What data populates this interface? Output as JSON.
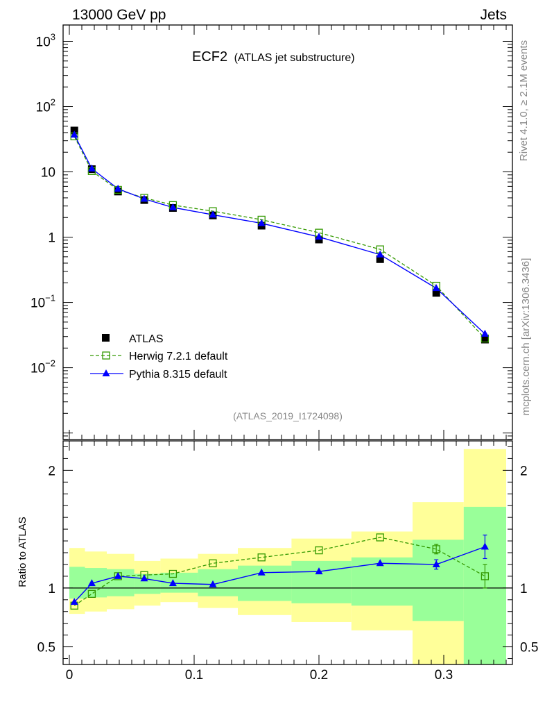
{
  "header": {
    "left": "13000 GeV pp",
    "right": "Jets"
  },
  "side_texts": {
    "events": "Rivet 4.1.0, ≥ 2.1M events",
    "site": "mcplots.cern.ch [arXiv:1306.3436]"
  },
  "colors": {
    "yellow_band": "#ffff99",
    "green_band": "#99ff99",
    "herwig": "#339900",
    "pythia": "#0000ff",
    "data": "#000000"
  },
  "chart_data": {
    "type": "line",
    "title_main": "ECF2",
    "title_sub": "(ATLAS jet substructure)",
    "analysis_id": "(ATLAS_2019_I1724098)",
    "ratio_ylabel": "Ratio to ATLAS",
    "xlim": [
      -0.005,
      0.355
    ],
    "main_ylim_log10": [
      -3.1,
      3.25
    ],
    "ratio_ylim": [
      0.35,
      2.25
    ],
    "main_yticks": [
      {
        "v": 3,
        "base": "10",
        "exp": "3"
      },
      {
        "v": 2,
        "base": "10",
        "exp": "2"
      },
      {
        "v": 1,
        "base": "10",
        "exp": ""
      },
      {
        "v": 0,
        "base": "1",
        "exp": ""
      },
      {
        "v": -1,
        "base": "10",
        "exp": "−1"
      },
      {
        "v": -2,
        "base": "10",
        "exp": "−2"
      }
    ],
    "ratio_yticks": [
      {
        "v": 0.5,
        "label": "0.5"
      },
      {
        "v": 1,
        "label": "1"
      },
      {
        "v": 2,
        "label": "2"
      }
    ],
    "xticks": [
      {
        "v": 0,
        "label": "0"
      },
      {
        "v": 0.1,
        "label": "0.1"
      },
      {
        "v": 0.2,
        "label": "0.2"
      },
      {
        "v": 0.3,
        "label": "0.3"
      }
    ],
    "bins": [
      {
        "lo": 0.0,
        "hi": 0.0125,
        "y_lo": 0.78,
        "y_hi": 1.34,
        "g_lo": 0.91,
        "g_hi": 1.18
      },
      {
        "lo": 0.0125,
        "hi": 0.03,
        "y_lo": 0.8,
        "y_hi": 1.31,
        "g_lo": 0.92,
        "g_hi": 1.17
      },
      {
        "lo": 0.03,
        "hi": 0.052,
        "y_lo": 0.82,
        "y_hi": 1.29,
        "g_lo": 0.93,
        "g_hi": 1.16
      },
      {
        "lo": 0.052,
        "hi": 0.073,
        "y_lo": 0.85,
        "y_hi": 1.23,
        "g_lo": 0.95,
        "g_hi": 1.12
      },
      {
        "lo": 0.073,
        "hi": 0.103,
        "y_lo": 0.88,
        "y_hi": 1.25,
        "g_lo": 0.96,
        "g_hi": 1.13
      },
      {
        "lo": 0.103,
        "hi": 0.135,
        "y_lo": 0.83,
        "y_hi": 1.29,
        "g_lo": 0.93,
        "g_hi": 1.16
      },
      {
        "lo": 0.135,
        "hi": 0.178,
        "y_lo": 0.77,
        "y_hi": 1.34,
        "g_lo": 0.89,
        "g_hi": 1.19
      },
      {
        "lo": 0.178,
        "hi": 0.226,
        "y_lo": 0.71,
        "y_hi": 1.42,
        "g_lo": 0.87,
        "g_hi": 1.23
      },
      {
        "lo": 0.226,
        "hi": 0.275,
        "y_lo": 0.64,
        "y_hi": 1.48,
        "g_lo": 0.85,
        "g_hi": 1.26
      },
      {
        "lo": 0.275,
        "hi": 0.316,
        "y_lo": 0.35,
        "y_hi": 1.73,
        "g_lo": 0.72,
        "g_hi": 1.41
      },
      {
        "lo": 0.316,
        "hi": 0.35,
        "y_lo": 0.35,
        "y_hi": 2.18,
        "g_lo": 0.35,
        "g_hi": 1.69
      }
    ],
    "series": [
      {
        "name": "ATLAS",
        "style": "data",
        "x": [
          0.004,
          0.018,
          0.039,
          0.06,
          0.083,
          0.115,
          0.154,
          0.2,
          0.249,
          0.294,
          0.333
        ],
        "y": [
          43,
          11,
          5.0,
          3.7,
          2.8,
          2.15,
          1.5,
          0.92,
          0.46,
          0.14,
          0.027
        ],
        "ratio": [
          1.0,
          1.0,
          1.0,
          1.0,
          1.0,
          1.0,
          1.0,
          1.0,
          1.0,
          1.0,
          1.0
        ]
      },
      {
        "name": "Herwig 7.2.1 default",
        "style": "herwig",
        "x": [
          0.004,
          0.018,
          0.039,
          0.06,
          0.083,
          0.115,
          0.154,
          0.2,
          0.249,
          0.294,
          0.333
        ],
        "y": [
          35,
          10.3,
          5.3,
          4.0,
          3.1,
          2.5,
          1.85,
          1.17,
          0.65,
          0.18,
          0.028
        ],
        "ratio": [
          0.85,
          0.95,
          1.1,
          1.11,
          1.12,
          1.21,
          1.26,
          1.32,
          1.43,
          1.33,
          1.1
        ],
        "ratio_err": [
          0.0,
          0.0,
          0.0,
          0.0,
          0.0,
          0.0,
          0.0,
          0.0,
          0.0,
          0.04,
          0.1
        ]
      },
      {
        "name": "Pythia 8.315 default",
        "style": "pythia",
        "x": [
          0.004,
          0.018,
          0.039,
          0.06,
          0.083,
          0.115,
          0.154,
          0.2,
          0.249,
          0.294,
          0.333
        ],
        "y": [
          37,
          11.2,
          5.5,
          3.85,
          2.85,
          2.2,
          1.63,
          1.01,
          0.54,
          0.165,
          0.033
        ],
        "ratio": [
          0.88,
          1.04,
          1.1,
          1.08,
          1.04,
          1.03,
          1.13,
          1.14,
          1.21,
          1.2,
          1.35
        ],
        "ratio_err": [
          0.0,
          0.0,
          0.0,
          0.0,
          0.0,
          0.0,
          0.0,
          0.0,
          0.0,
          0.04,
          0.1
        ]
      }
    ]
  }
}
